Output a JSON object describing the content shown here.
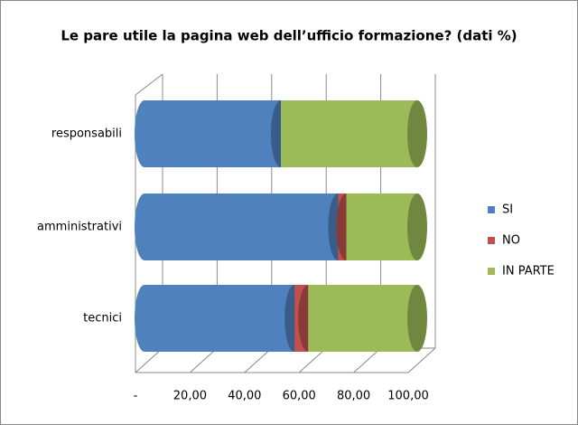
{
  "chart_data": {
    "type": "bar3d-stacked-horizontal",
    "title": "Le pare utile la pagina web dell’ufficio formazione? (dati %)",
    "categories": [
      "responsabili",
      "amministrativi",
      "tecnici"
    ],
    "series": [
      {
        "name": "SI",
        "color": "#4f81bd",
        "values": [
          50,
          71,
          55
        ]
      },
      {
        "name": "NO",
        "color": "#c0504d",
        "values": [
          0,
          3,
          5
        ]
      },
      {
        "name": "IN PARTE",
        "color": "#9bbb59",
        "values": [
          50,
          26,
          40
        ]
      }
    ],
    "xlim": [
      0,
      100
    ],
    "xticks": [
      {
        "value": 0,
        "label": "-"
      },
      {
        "value": 20,
        "label": "20,00"
      },
      {
        "value": 40,
        "label": "40,00"
      },
      {
        "value": 60,
        "label": "60,00"
      },
      {
        "value": 80,
        "label": "80,00"
      },
      {
        "value": 100,
        "label": "100,00"
      }
    ],
    "grid": true,
    "legend": "right"
  }
}
